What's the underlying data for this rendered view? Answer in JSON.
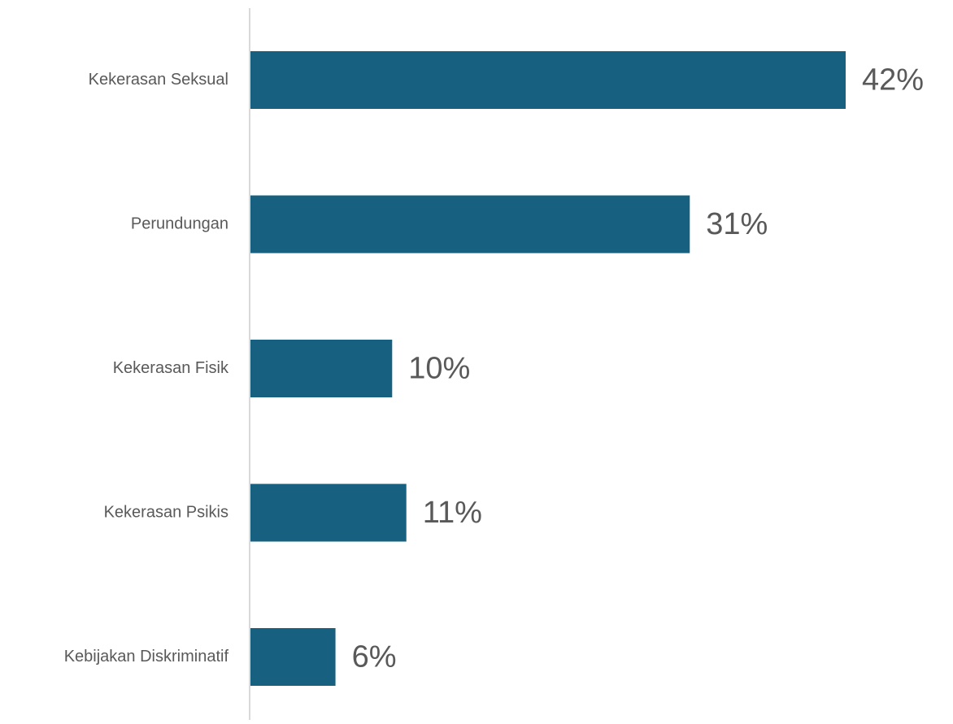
{
  "chart_data": {
    "type": "bar",
    "orientation": "horizontal",
    "title": "",
    "xlabel": "",
    "ylabel": "",
    "categories": [
      "Kekerasan Seksual",
      "Perundungan",
      "Kekerasan Fisik",
      "Kekerasan Psikis",
      "Kebijakan Diskriminatif"
    ],
    "values": [
      42,
      31,
      10,
      11,
      6
    ],
    "value_labels": [
      "42%",
      "31%",
      "10%",
      "11%",
      "6%"
    ],
    "xlim": [
      0,
      42
    ],
    "grid": false,
    "legend": "none",
    "colors": {
      "bar": "#17607f",
      "axis": "#d9d9d9",
      "text": "#595959"
    }
  }
}
